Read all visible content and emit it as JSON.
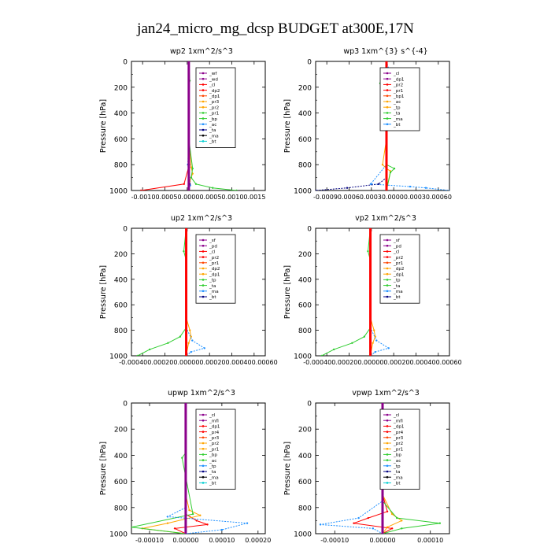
{
  "figure": {
    "title": "jan24_micro_mg_dcsp  BUDGET at300E,17N"
  },
  "chart_data": [
    {
      "type": "line",
      "title": "wp2   1xm^2/s^3",
      "ylabel": "Pressure [hPa]",
      "ylim": [
        1000,
        0
      ],
      "yticks": [
        0,
        200,
        400,
        600,
        800,
        1000
      ],
      "xticks": [
        "-0.0010",
        "0.0005",
        "0.0000",
        "0.0005",
        "0.0010",
        "0.0015"
      ],
      "xlabels_joined": "-0.00100.00050.00000.00050.00100.0015",
      "xlim": [
        -0.0012,
        0.0016
      ],
      "legend_position": "top-right",
      "legend": [
        "_wf",
        "_wd",
        "_cl",
        "_dp2",
        "_dp1",
        "_pr3",
        "_pr2",
        "_pr1",
        "_bp",
        "_ac",
        "_ta",
        "_ma",
        "_bt"
      ],
      "series": [
        {
          "name": "_wf",
          "color": "#8b008b",
          "x": [
            0,
            0,
            0,
            0,
            0,
            0,
            0
          ],
          "y": [
            0,
            200,
            400,
            600,
            800,
            900,
            1000
          ]
        },
        {
          "name": "_dp2",
          "color": "#ff0000",
          "x": [
            0,
            0,
            0,
            0,
            1e-05,
            -0.0001,
            -0.001
          ],
          "y": [
            0,
            200,
            400,
            600,
            800,
            950,
            1000
          ]
        },
        {
          "name": "_pr2",
          "color": "#ffa500",
          "x": [
            0,
            0,
            0,
            0,
            5e-05,
            8e-05,
            2e-05,
            0
          ],
          "y": [
            0,
            200,
            400,
            600,
            820,
            870,
            930,
            1000
          ]
        },
        {
          "name": "_pr1",
          "color": "#32cd32",
          "x": [
            0,
            2e-05,
            0,
            0,
            8e-05,
            5e-05,
            0.00015,
            0.0005,
            0.001
          ],
          "y": [
            0,
            150,
            200,
            600,
            830,
            900,
            950,
            980,
            1000
          ]
        },
        {
          "name": "_ac",
          "color": "#1e90ff",
          "x": [
            0,
            0,
            0,
            0,
            -2e-05,
            3e-05,
            0
          ],
          "y": [
            0,
            200,
            400,
            600,
            800,
            960,
            1000
          ]
        },
        {
          "name": "_ta",
          "color": "#000080",
          "x": [
            0,
            0,
            0,
            -1e-05,
            2e-05,
            0
          ],
          "y": [
            0,
            200,
            600,
            800,
            950,
            1000
          ]
        }
      ]
    },
    {
      "type": "line",
      "title": "wp3   1xm^{3} s^{-4}",
      "ylabel": "Pressure [hPa]",
      "ylim": [
        1000,
        0
      ],
      "yticks": [
        0,
        200,
        400,
        600,
        800,
        1000
      ],
      "xticks": [
        "-0.0009",
        "0.0006",
        "0.0003",
        "0.0000",
        "0.0003",
        "0.0006"
      ],
      "xlabels_joined": "-0.00090.00060.00030.00000.00030.00060",
      "xlim": [
        -0.0009,
        0.0008
      ],
      "legend_position": "top-right",
      "legend": [
        "_cl",
        "_dp1",
        "_pr2",
        "_pr1",
        "_bp1",
        "_ac",
        "_tp",
        "_ta",
        "_ma",
        "_bt"
      ],
      "series": [
        {
          "name": "_cl",
          "color": "#ff0000",
          "x": [
            0,
            0,
            0,
            0,
            0,
            0,
            0
          ],
          "y": [
            0,
            200,
            400,
            600,
            800,
            900,
            1000
          ]
        },
        {
          "name": "_pr2",
          "color": "#ffa500",
          "x": [
            0,
            0,
            0,
            0,
            -5e-05,
            0,
            5e-05,
            0
          ],
          "y": [
            0,
            200,
            400,
            600,
            800,
            830,
            850,
            1000
          ]
        },
        {
          "name": "_pr1",
          "color": "#32cd32",
          "x": [
            0,
            0,
            -8e-05,
            0,
            0,
            0.0001,
            5e-05,
            0
          ],
          "y": [
            0,
            120,
            170,
            200,
            800,
            830,
            860,
            1000
          ]
        },
        {
          "name": "_tp",
          "color": "#1e90ff",
          "x": [
            0,
            5e-05,
            -5e-05,
            0,
            0,
            -0.0002,
            0.0003,
            0.0005,
            0.0008
          ],
          "y": [
            0,
            100,
            150,
            180,
            800,
            950,
            970,
            980,
            1000
          ]
        },
        {
          "name": "_ta",
          "color": "#000080",
          "x": [
            0,
            0,
            0,
            -0.0001,
            -0.0005,
            -0.0009
          ],
          "y": [
            0,
            600,
            900,
            950,
            980,
            1000
          ]
        }
      ]
    },
    {
      "type": "line",
      "title": "up2   1xm^2/s^3",
      "ylabel": "Pressure [hPa]",
      "ylim": [
        1000,
        0
      ],
      "yticks": [
        0,
        200,
        400,
        600,
        800,
        1000
      ],
      "xticks": [
        "-0.00040",
        "0.00020",
        "0.00000",
        "0.00020",
        "0.00040",
        "0.00060"
      ],
      "xlabels_joined": "-0.000400.000200.000000.000200.000400.00060",
      "xlim": [
        -0.00045,
        0.00065
      ],
      "legend_position": "top-right",
      "legend": [
        "_sf",
        "_pd",
        "_cl",
        "_pr2",
        "_pr1",
        "_dp2",
        "_dp1",
        "_tp",
        "_ta",
        "_ma",
        "_bt"
      ],
      "series": [
        {
          "name": "_cl",
          "color": "#ff0000",
          "x": [
            0,
            0,
            0,
            0,
            0,
            0,
            0
          ],
          "y": [
            0,
            200,
            400,
            600,
            800,
            900,
            1000
          ]
        },
        {
          "name": "_pr2",
          "color": "#ffa500",
          "x": [
            0,
            0,
            0,
            3e-05,
            4e-05,
            2e-05,
            0
          ],
          "y": [
            0,
            200,
            700,
            800,
            850,
            900,
            1000
          ]
        },
        {
          "name": "_dp1",
          "color": "#32cd32",
          "x": [
            0,
            -2e-05,
            0,
            0,
            -5e-05,
            -0.00015,
            -0.0003,
            -0.0004
          ],
          "y": [
            0,
            180,
            250,
            780,
            850,
            900,
            950,
            1000
          ]
        },
        {
          "name": "_tp",
          "color": "#1e90ff",
          "x": [
            0,
            0,
            5e-05,
            0.00015,
            4e-05,
            0
          ],
          "y": [
            0,
            780,
            880,
            940,
            970,
            1000
          ]
        }
      ]
    },
    {
      "type": "line",
      "title": "vp2   1xm^2/s^3",
      "ylabel": "Pressure [hPa]",
      "ylim": [
        1000,
        0
      ],
      "yticks": [
        0,
        200,
        400,
        600,
        800,
        1000
      ],
      "xticks": [
        "-0.00040",
        "0.00020",
        "0.00000",
        "0.00020",
        "0.00040",
        "0.00060"
      ],
      "xlabels_joined": "-0.000400.000200.000000.000200.000400.00060",
      "xlim": [
        -0.00045,
        0.00065
      ],
      "legend_position": "top-right",
      "legend": [
        "_sf",
        "_pd",
        "_cl",
        "_pr2",
        "_pr1",
        "_dp2",
        "_dp1",
        "_tp",
        "_ta",
        "_ma",
        "_bt"
      ],
      "series": [
        {
          "name": "_cl",
          "color": "#ff0000",
          "x": [
            0,
            0,
            0,
            0,
            0,
            0,
            0
          ],
          "y": [
            0,
            200,
            400,
            600,
            800,
            900,
            1000
          ]
        },
        {
          "name": "_pr2",
          "color": "#ffa500",
          "x": [
            0,
            0,
            0,
            3e-05,
            4e-05,
            2e-05,
            0
          ],
          "y": [
            0,
            200,
            700,
            800,
            850,
            900,
            1000
          ]
        },
        {
          "name": "_dp1",
          "color": "#32cd32",
          "x": [
            0,
            -2e-05,
            0,
            0,
            -5e-05,
            -0.00015,
            -0.0003,
            -0.0004
          ],
          "y": [
            0,
            180,
            250,
            780,
            850,
            900,
            950,
            1000
          ]
        },
        {
          "name": "_tp",
          "color": "#1e90ff",
          "x": [
            0,
            0,
            5e-05,
            0.00015,
            4e-05,
            0
          ],
          "y": [
            0,
            780,
            880,
            940,
            970,
            1000
          ]
        }
      ]
    },
    {
      "type": "line",
      "title": "upwp   1xm^2/s^3",
      "ylabel": "Pressure [hPa]",
      "ylim": [
        1000,
        0
      ],
      "yticks": [
        0,
        200,
        400,
        600,
        800,
        1000
      ],
      "xticks": [
        "-0.00010",
        "0.00000",
        "0.00010",
        "0.00020"
      ],
      "xlim": [
        -0.00015,
        0.00022
      ],
      "legend_position": "top-right",
      "legend": [
        "_cl",
        "_mfl",
        "_dp1",
        "_pr4",
        "_pr3",
        "_pr2",
        "_pr1",
        "_bp",
        "_ac",
        "_tp",
        "_ta",
        "_ma",
        "_bt"
      ],
      "series": [
        {
          "name": "_mfl",
          "color": "#8b008b",
          "x": [
            0,
            0,
            0,
            0,
            0,
            0,
            0
          ],
          "y": [
            0,
            200,
            400,
            600,
            800,
            900,
            1000
          ]
        },
        {
          "name": "_pr1",
          "color": "#ff0000",
          "x": [
            0,
            0,
            0,
            3e-05,
            6e-05,
            -3e-05,
            0
          ],
          "y": [
            0,
            700,
            850,
            900,
            930,
            960,
            1000
          ]
        },
        {
          "name": "_pr2",
          "color": "#ffa500",
          "x": [
            0,
            0,
            1e-05,
            4e-05,
            -5e-05,
            -0.00012,
            0
          ],
          "y": [
            0,
            700,
            820,
            860,
            920,
            960,
            1000
          ]
        },
        {
          "name": "_bp",
          "color": "#32cd32",
          "x": [
            0,
            0,
            -1e-05,
            2e-05,
            -0.00015,
            0
          ],
          "y": [
            0,
            380,
            420,
            850,
            950,
            1000
          ]
        },
        {
          "name": "_ac",
          "color": "#1e90ff",
          "x": [
            0,
            0,
            -5e-05,
            0.00017,
            0.0001,
            0
          ],
          "y": [
            0,
            800,
            870,
            920,
            970,
            1000
          ]
        }
      ]
    },
    {
      "type": "line",
      "title": "vpwp   1xm^2/s^3",
      "ylabel": "Pressure [hPa]",
      "ylim": [
        1000,
        0
      ],
      "yticks": [
        0,
        200,
        400,
        600,
        800,
        1000
      ],
      "xticks": [
        "-0.00010",
        "0.00000",
        "0.00010"
      ],
      "xlim": [
        -0.00014,
        0.00014
      ],
      "legend_position": "top-right",
      "legend": [
        "_cl",
        "_mfl",
        "_dp1",
        "_pr4",
        "_pr3",
        "_pr2",
        "_pr1",
        "_bp",
        "_ac",
        "_tp",
        "_ta",
        "_ma",
        "_bt"
      ],
      "series": [
        {
          "name": "_mfl",
          "color": "#8b008b",
          "x": [
            0,
            0,
            0,
            0,
            0,
            0,
            0
          ],
          "y": [
            0,
            200,
            400,
            600,
            800,
            900,
            1000
          ]
        },
        {
          "name": "_pr1",
          "color": "#ff0000",
          "x": [
            0,
            0,
            1e-05,
            -3e-05,
            -6e-05,
            2e-05,
            0
          ],
          "y": [
            0,
            700,
            830,
            880,
            920,
            960,
            1000
          ]
        },
        {
          "name": "_pr2",
          "color": "#ffa500",
          "x": [
            0,
            0,
            2e-05,
            4e-05,
            1e-05,
            0
          ],
          "y": [
            0,
            700,
            850,
            900,
            950,
            1000
          ]
        },
        {
          "name": "_bp",
          "color": "#32cd32",
          "x": [
            0,
            0,
            3e-05,
            0.00012,
            4e-05,
            0
          ],
          "y": [
            0,
            750,
            880,
            920,
            960,
            1000
          ]
        },
        {
          "name": "_ac",
          "color": "#1e90ff",
          "x": [
            0,
            0,
            -5e-05,
            -0.00013,
            -2e-05,
            0
          ],
          "y": [
            0,
            750,
            880,
            930,
            960,
            1000
          ]
        }
      ]
    }
  ]
}
